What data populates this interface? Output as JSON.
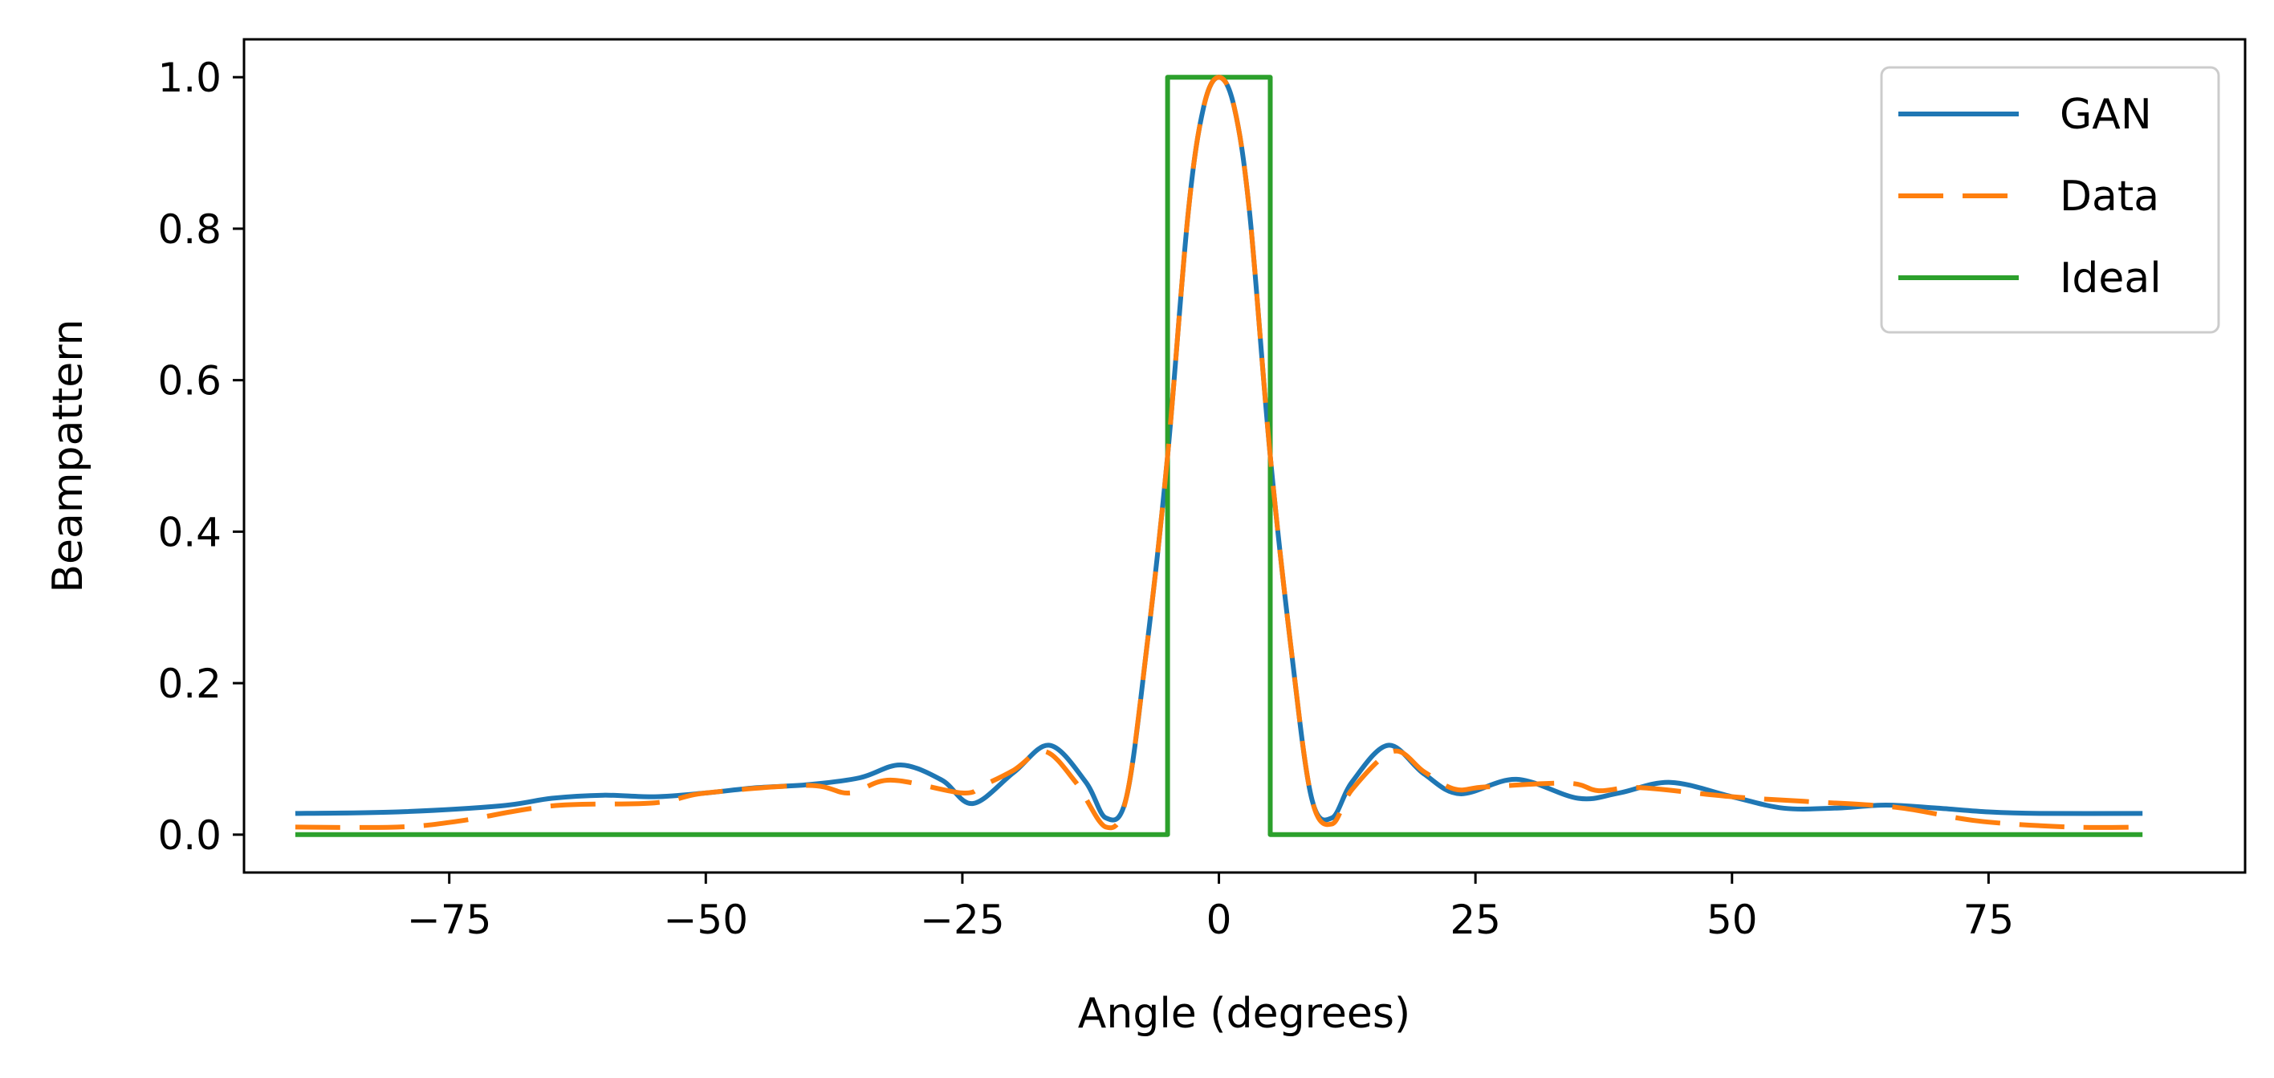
{
  "chart_data": {
    "type": "line",
    "title": "",
    "xlabel": "Angle (degrees)",
    "ylabel": "Beampattern",
    "xlim": [
      -95,
      100
    ],
    "ylim": [
      -0.05,
      1.05
    ],
    "xticks": [
      -75,
      -50,
      -25,
      0,
      25,
      50,
      75
    ],
    "xtick_labels": [
      "−75",
      "−50",
      "−25",
      "0",
      "25",
      "50",
      "75"
    ],
    "yticks": [
      0.0,
      0.2,
      0.4,
      0.6,
      0.8,
      1.0
    ],
    "ytick_labels": [
      "0.0",
      "0.2",
      "0.4",
      "0.6",
      "0.8",
      "1.0"
    ],
    "grid": false,
    "legend_position": "top-right",
    "series": [
      {
        "name": "GAN",
        "color": "#1f77b4",
        "dash": "solid",
        "points": [
          [
            -90,
            0.028
          ],
          [
            -80,
            0.03
          ],
          [
            -70,
            0.038
          ],
          [
            -65,
            0.048
          ],
          [
            -60,
            0.052
          ],
          [
            -55,
            0.05
          ],
          [
            -50,
            0.055
          ],
          [
            -45,
            0.062
          ],
          [
            -40,
            0.066
          ],
          [
            -35,
            0.075
          ],
          [
            -31,
            0.092
          ],
          [
            -27,
            0.072
          ],
          [
            -24,
            0.041
          ],
          [
            -20,
            0.082
          ],
          [
            -16.5,
            0.118
          ],
          [
            -13,
            0.07
          ],
          [
            -11,
            0.022
          ],
          [
            -9,
            0.05
          ],
          [
            -7,
            0.25
          ],
          [
            -5,
            0.5
          ],
          [
            -3,
            0.82
          ],
          [
            -1.5,
            0.96
          ],
          [
            0,
            1.0
          ],
          [
            1.5,
            0.96
          ],
          [
            3,
            0.82
          ],
          [
            5,
            0.5
          ],
          [
            7,
            0.25
          ],
          [
            9,
            0.05
          ],
          [
            11,
            0.022
          ],
          [
            13,
            0.07
          ],
          [
            16.5,
            0.118
          ],
          [
            20,
            0.08
          ],
          [
            23.5,
            0.054
          ],
          [
            29,
            0.073
          ],
          [
            35,
            0.048
          ],
          [
            39,
            0.055
          ],
          [
            44,
            0.069
          ],
          [
            50,
            0.05
          ],
          [
            55,
            0.035
          ],
          [
            60,
            0.035
          ],
          [
            65,
            0.039
          ],
          [
            70,
            0.035
          ],
          [
            75,
            0.03
          ],
          [
            80,
            0.028
          ],
          [
            90,
            0.028
          ]
        ]
      },
      {
        "name": "Data",
        "color": "#ff7f0e",
        "dash": "dashed",
        "points": [
          [
            -90,
            0.01
          ],
          [
            -80,
            0.01
          ],
          [
            -74,
            0.018
          ],
          [
            -65,
            0.038
          ],
          [
            -55,
            0.042
          ],
          [
            -50,
            0.055
          ],
          [
            -40,
            0.065
          ],
          [
            -36,
            0.055
          ],
          [
            -32,
            0.072
          ],
          [
            -25,
            0.055
          ],
          [
            -23,
            0.065
          ],
          [
            -20,
            0.085
          ],
          [
            -17,
            0.11
          ],
          [
            -14,
            0.07
          ],
          [
            -11,
            0.01
          ],
          [
            -9,
            0.05
          ],
          [
            -7,
            0.25
          ],
          [
            -5,
            0.5
          ],
          [
            -3,
            0.82
          ],
          [
            -1.5,
            0.96
          ],
          [
            0,
            1.0
          ],
          [
            1.5,
            0.96
          ],
          [
            3,
            0.82
          ],
          [
            5,
            0.5
          ],
          [
            7,
            0.25
          ],
          [
            9,
            0.05
          ],
          [
            11,
            0.014
          ],
          [
            13,
            0.06
          ],
          [
            17,
            0.11
          ],
          [
            20,
            0.083
          ],
          [
            23,
            0.06
          ],
          [
            26,
            0.063
          ],
          [
            34,
            0.068
          ],
          [
            37,
            0.058
          ],
          [
            41,
            0.062
          ],
          [
            50,
            0.05
          ],
          [
            57,
            0.044
          ],
          [
            66,
            0.036
          ],
          [
            74,
            0.018
          ],
          [
            83,
            0.01
          ],
          [
            90,
            0.01
          ]
        ]
      },
      {
        "name": "Ideal",
        "color": "#2ca02c",
        "dash": "solid",
        "points": [
          [
            -90,
            0
          ],
          [
            -5,
            0
          ],
          [
            -5,
            1
          ],
          [
            5,
            1
          ],
          [
            5,
            0
          ],
          [
            90,
            0
          ]
        ]
      }
    ]
  }
}
